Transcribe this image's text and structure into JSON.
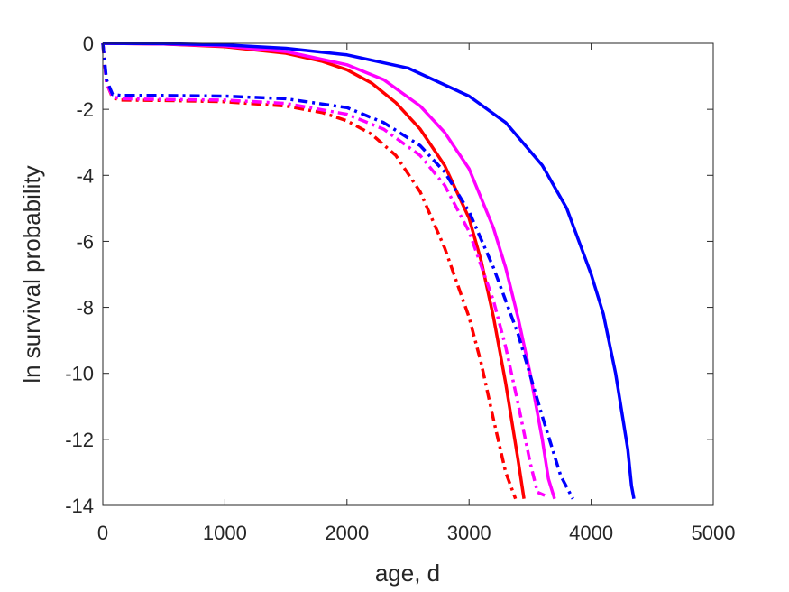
{
  "chart_data": {
    "type": "line",
    "title": "",
    "xlabel": "age, d",
    "ylabel": "ln survival probability",
    "xlim": [
      0,
      5000
    ],
    "ylim": [
      -14,
      0
    ],
    "xticks": [
      0,
      1000,
      2000,
      3000,
      4000,
      5000
    ],
    "yticks": [
      0,
      -2,
      -4,
      -6,
      -8,
      -10,
      -12,
      -14
    ],
    "xtick_labels": [
      "0",
      "1000",
      "2000",
      "3000",
      "4000",
      "5000"
    ],
    "ytick_labels": [
      "0",
      "-2",
      "-4",
      "-6",
      "-8",
      "-10",
      "-12",
      "-14"
    ],
    "grid": false,
    "legend": "none",
    "series": [
      {
        "color": "#ff0000",
        "style": "solid",
        "points": [
          [
            0,
            0
          ],
          [
            500,
            -0.02
          ],
          [
            1000,
            -0.1
          ],
          [
            1500,
            -0.3
          ],
          [
            1800,
            -0.55
          ],
          [
            2000,
            -0.8
          ],
          [
            2200,
            -1.2
          ],
          [
            2400,
            -1.8
          ],
          [
            2600,
            -2.6
          ],
          [
            2800,
            -3.7
          ],
          [
            3000,
            -5.3
          ],
          [
            3100,
            -6.6
          ],
          [
            3200,
            -8.3
          ],
          [
            3300,
            -10.3
          ],
          [
            3400,
            -12.6
          ],
          [
            3450,
            -13.8
          ]
        ]
      },
      {
        "color": "#ff00ff",
        "style": "solid",
        "points": [
          [
            0,
            0
          ],
          [
            500,
            -0.02
          ],
          [
            1000,
            -0.08
          ],
          [
            1500,
            -0.25
          ],
          [
            2000,
            -0.65
          ],
          [
            2300,
            -1.1
          ],
          [
            2600,
            -1.9
          ],
          [
            2800,
            -2.7
          ],
          [
            3000,
            -3.8
          ],
          [
            3200,
            -5.6
          ],
          [
            3300,
            -6.8
          ],
          [
            3400,
            -8.3
          ],
          [
            3500,
            -10.0
          ],
          [
            3600,
            -12.0
          ],
          [
            3650,
            -13.2
          ],
          [
            3700,
            -13.8
          ]
        ]
      },
      {
        "color": "#0000ff",
        "style": "solid",
        "points": [
          [
            0,
            0
          ],
          [
            500,
            -0.01
          ],
          [
            1000,
            -0.05
          ],
          [
            1500,
            -0.15
          ],
          [
            2000,
            -0.35
          ],
          [
            2500,
            -0.75
          ],
          [
            3000,
            -1.6
          ],
          [
            3300,
            -2.4
          ],
          [
            3600,
            -3.7
          ],
          [
            3800,
            -5.0
          ],
          [
            4000,
            -7.0
          ],
          [
            4100,
            -8.2
          ],
          [
            4200,
            -10.0
          ],
          [
            4300,
            -12.3
          ],
          [
            4330,
            -13.4
          ],
          [
            4350,
            -13.8
          ]
        ]
      },
      {
        "color": "#ff0000",
        "style": "dashdot",
        "points": [
          [
            0,
            0
          ],
          [
            30,
            -1.2
          ],
          [
            80,
            -1.65
          ],
          [
            150,
            -1.72
          ],
          [
            500,
            -1.73
          ],
          [
            1000,
            -1.77
          ],
          [
            1500,
            -1.9
          ],
          [
            1800,
            -2.1
          ],
          [
            2000,
            -2.35
          ],
          [
            2200,
            -2.75
          ],
          [
            2400,
            -3.4
          ],
          [
            2600,
            -4.5
          ],
          [
            2800,
            -6.2
          ],
          [
            3000,
            -8.3
          ],
          [
            3100,
            -9.7
          ],
          [
            3200,
            -11.4
          ],
          [
            3300,
            -13.0
          ],
          [
            3380,
            -13.8
          ]
        ]
      },
      {
        "color": "#ff00ff",
        "style": "dashdot",
        "points": [
          [
            0,
            0
          ],
          [
            30,
            -1.2
          ],
          [
            80,
            -1.62
          ],
          [
            150,
            -1.68
          ],
          [
            500,
            -1.7
          ],
          [
            1000,
            -1.72
          ],
          [
            1500,
            -1.82
          ],
          [
            2000,
            -2.15
          ],
          [
            2300,
            -2.6
          ],
          [
            2600,
            -3.4
          ],
          [
            2800,
            -4.3
          ],
          [
            3000,
            -5.7
          ],
          [
            3200,
            -7.8
          ],
          [
            3300,
            -9.2
          ],
          [
            3400,
            -10.9
          ],
          [
            3500,
            -12.7
          ],
          [
            3560,
            -13.6
          ],
          [
            3620,
            -13.7
          ]
        ]
      },
      {
        "color": "#0000ff",
        "style": "dashdot",
        "points": [
          [
            0,
            0
          ],
          [
            30,
            -1.1
          ],
          [
            80,
            -1.55
          ],
          [
            150,
            -1.58
          ],
          [
            500,
            -1.58
          ],
          [
            1000,
            -1.6
          ],
          [
            1500,
            -1.68
          ],
          [
            2000,
            -1.95
          ],
          [
            2300,
            -2.4
          ],
          [
            2600,
            -3.1
          ],
          [
            2800,
            -3.9
          ],
          [
            3000,
            -5.1
          ],
          [
            3200,
            -6.8
          ],
          [
            3400,
            -8.8
          ],
          [
            3600,
            -11.3
          ],
          [
            3750,
            -13.1
          ],
          [
            3850,
            -13.8
          ]
        ]
      }
    ]
  }
}
